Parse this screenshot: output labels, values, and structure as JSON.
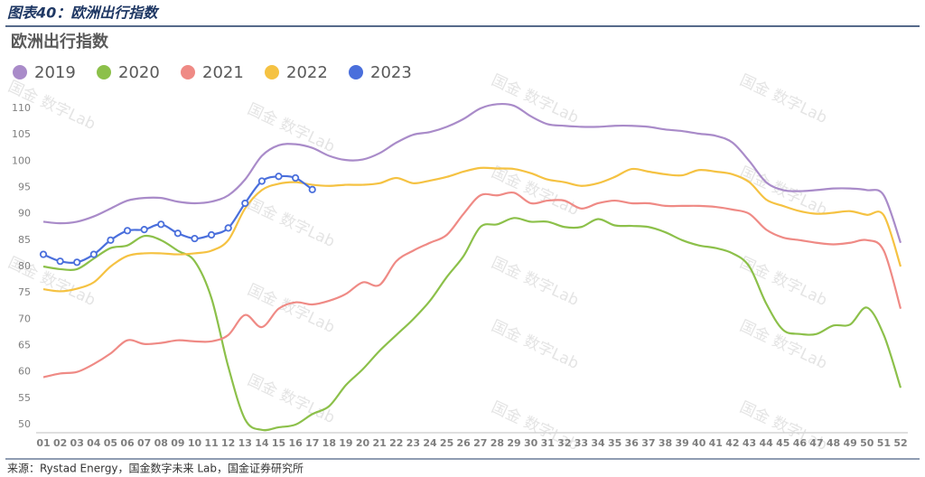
{
  "header": "图表40：欧洲出行指数",
  "source": "来源：Rystad Energy，国金数字未来 Lab，国金证券研究所",
  "watermark": "国金 数字Lab",
  "chart_data": {
    "type": "line",
    "title": "欧洲出行指数",
    "categories": [
      "01",
      "02",
      "03",
      "04",
      "05",
      "06",
      "07",
      "08",
      "09",
      "10",
      "11",
      "12",
      "13",
      "14",
      "15",
      "16",
      "17",
      "18",
      "19",
      "20",
      "21",
      "22",
      "23",
      "24",
      "25",
      "26",
      "27",
      "28",
      "29",
      "30",
      "31",
      "32",
      "33",
      "34",
      "35",
      "36",
      "37",
      "38",
      "39",
      "40",
      "41",
      "42",
      "43",
      "44",
      "45",
      "46",
      "47",
      "48",
      "49",
      "50",
      "51",
      "52"
    ],
    "series": [
      {
        "name": "2019",
        "color": "#a98bc9",
        "values": [
          88.5,
          88.2,
          88.5,
          89.5,
          91,
          92.5,
          93,
          93,
          92.3,
          92,
          92.3,
          93.5,
          96.5,
          101,
          103,
          103.2,
          102.5,
          101,
          100.2,
          100.3,
          101.5,
          103.5,
          105,
          105.5,
          106.5,
          108,
          110,
          110.8,
          110.5,
          108.5,
          107,
          106.7,
          106.5,
          106.5,
          106.7,
          106.7,
          106.5,
          106,
          105.7,
          105.2,
          104.8,
          103.5,
          100,
          96,
          94.5,
          94.3,
          94.5,
          94.8,
          94.8,
          94.5,
          93.5,
          84.5
        ]
      },
      {
        "name": "2020",
        "color": "#8cc04a",
        "values": [
          80,
          79.5,
          79.5,
          81.5,
          83.5,
          84,
          85.8,
          85,
          83,
          81,
          74,
          61,
          51,
          49,
          49.5,
          50,
          52,
          53.5,
          57.5,
          60.5,
          64,
          67,
          70,
          73.5,
          78,
          82,
          87.5,
          88,
          89.2,
          88.5,
          88.5,
          87.5,
          87.5,
          89,
          87.8,
          87.7,
          87.5,
          86.5,
          85,
          84,
          83.5,
          82.5,
          80,
          73,
          68,
          67.2,
          67.2,
          68.8,
          69,
          72.2,
          67,
          57
        ]
      },
      {
        "name": "2021",
        "color": "#ef8a85",
        "values": [
          59,
          59.7,
          60,
          61.5,
          63.5,
          66,
          65.3,
          65.5,
          66,
          65.8,
          65.8,
          67,
          70.8,
          68.5,
          72,
          73.2,
          72.8,
          73.5,
          74.8,
          77,
          76.5,
          81,
          83,
          84.5,
          86,
          90,
          93.5,
          93.5,
          94,
          92,
          92.5,
          92.5,
          91,
          92,
          92.5,
          92,
          92,
          91.5,
          91.5,
          91.5,
          91.3,
          90.8,
          90,
          87,
          85.5,
          85,
          84.5,
          84.2,
          84.5,
          85,
          83,
          72
        ]
      },
      {
        "name": "2022",
        "color": "#f5c242",
        "values": [
          75.7,
          75.3,
          75.8,
          77,
          80,
          82,
          82.5,
          82.5,
          82.3,
          82.5,
          83,
          85,
          91,
          94.5,
          95.7,
          96,
          95.5,
          95.3,
          95.5,
          95.5,
          95.8,
          96.8,
          95.8,
          96.3,
          97,
          98,
          98.7,
          98.6,
          98.5,
          97.7,
          96.5,
          96,
          95.3,
          95.8,
          97,
          98.5,
          98,
          97.5,
          97.3,
          98.3,
          98,
          97.5,
          96,
          92.7,
          91.5,
          90.5,
          90,
          90.2,
          90.5,
          89.8,
          89.7,
          80
        ]
      },
      {
        "name": "2023",
        "color": "#4a6fdc",
        "markers": true,
        "values": [
          82.3,
          81,
          80.8,
          82.3,
          85,
          86.8,
          87,
          88,
          86.3,
          85.3,
          86,
          87.3,
          92,
          96.2,
          97.1,
          96.8,
          94.6,
          null,
          null,
          null,
          null,
          null,
          null,
          null,
          null,
          null,
          null,
          null,
          null,
          null,
          null,
          null,
          null,
          null,
          null,
          null,
          null,
          null,
          null,
          null,
          null,
          null,
          null,
          null,
          null,
          null,
          null,
          null,
          null,
          null,
          null,
          null
        ]
      }
    ],
    "ylim": [
      48,
      112
    ],
    "yticks": [
      50,
      55,
      60,
      65,
      70,
      75,
      80,
      85,
      90,
      95,
      100,
      105,
      110
    ],
    "grid": false
  }
}
